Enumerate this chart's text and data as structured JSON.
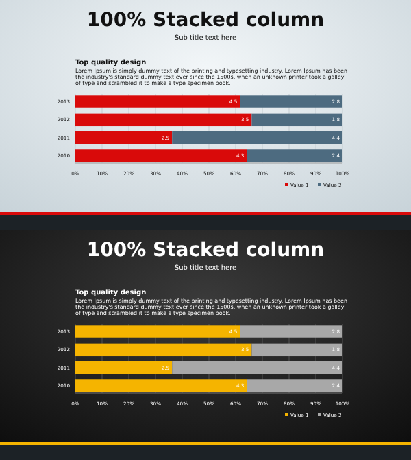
{
  "chart_data": [
    {
      "type": "bar",
      "orientation": "horizontal",
      "stacked": true,
      "title": "100% Stacked column",
      "subtitle": "Sub title text here",
      "annotations": [
        "Top quality design",
        "Lorem Ipsum is simply dummy text of the printing and typesetting industry. Lorem Ipsum has been the industry's standard dummy text ever since the 1500s, when an unknown printer took a galley of type and scrambled it to make a type specimen book.",
        {
          "text": "4.5",
          "x": 61.6,
          "y": "2013"
        },
        {
          "text": "3.5",
          "x": 66.0,
          "y": "2012"
        },
        {
          "text": "2.5",
          "x": 36.2,
          "y": "2011"
        },
        {
          "text": "4.3",
          "x": 64.2,
          "y": "2010"
        },
        {
          "text": "2.8",
          "x": 100,
          "y": "2013"
        },
        {
          "text": "1.8",
          "x": 100,
          "y": "2012"
        },
        {
          "text": "4.4",
          "x": 100,
          "y": "2011"
        },
        {
          "text": "2.4",
          "x": 100,
          "y": "2010"
        }
      ],
      "categories": [
        "2013",
        "2012",
        "2011",
        "2010"
      ],
      "series": [
        {
          "name": "Value 1",
          "color": "#d90a0a",
          "values": [
            61.6,
            66.0,
            36.2,
            64.2
          ]
        },
        {
          "name": "Value 2",
          "color": "#4d6b80",
          "values": [
            38.4,
            34.0,
            63.8,
            35.8
          ]
        }
      ],
      "xlim": [
        0,
        100
      ],
      "xticks": [
        {
          "value": 0,
          "label": "0%"
        },
        {
          "value": 10,
          "label": "10%"
        },
        {
          "value": 20,
          "label": "20%"
        },
        {
          "value": 30,
          "label": "30%"
        },
        {
          "value": 40,
          "label": "40%"
        },
        {
          "value": 50,
          "label": "50%"
        },
        {
          "value": 60,
          "label": "60%"
        },
        {
          "value": 70,
          "label": "70%"
        },
        {
          "value": 80,
          "label": "80%"
        },
        {
          "value": 90,
          "label": "90%"
        },
        {
          "value": 100,
          "label": "100%"
        }
      ],
      "grid": "x",
      "legend": "bottom right"
    },
    {
      "type": "bar",
      "orientation": "horizontal",
      "stacked": true,
      "title": "100% Stacked column",
      "subtitle": "Sub title text here",
      "annotations": [
        "Top quality design",
        "Lorem Ipsum is simply dummy text of the printing and typesetting industry. Lorem Ipsum has been the industry's standard dummy text ever since the 1500s, when an unknown printer took a galley of type and scrambled it to make a type specimen book.",
        {
          "text": "4.5",
          "x": 61.6,
          "y": "2013"
        },
        {
          "text": "3.5",
          "x": 66.0,
          "y": "2012"
        },
        {
          "text": "2.5",
          "x": 36.2,
          "y": "2011"
        },
        {
          "text": "4.3",
          "x": 64.2,
          "y": "2010"
        },
        {
          "text": "2.8",
          "x": 100,
          "y": "2013"
        },
        {
          "text": "1.8",
          "x": 100,
          "y": "2012"
        },
        {
          "text": "4.4",
          "x": 100,
          "y": "2011"
        },
        {
          "text": "2.4",
          "x": 100,
          "y": "2010"
        }
      ],
      "categories": [
        "2013",
        "2012",
        "2011",
        "2010"
      ],
      "series": [
        {
          "name": "Value 1",
          "color": "#f5b400",
          "values": [
            61.6,
            66.0,
            36.2,
            64.2
          ]
        },
        {
          "name": "Value 2",
          "color": "#a8a8a8",
          "values": [
            38.4,
            34.0,
            63.8,
            35.8
          ]
        }
      ],
      "xlim": [
        0,
        100
      ],
      "xticks": [
        {
          "value": 0,
          "label": "0%"
        },
        {
          "value": 10,
          "label": "10%"
        },
        {
          "value": 20,
          "label": "20%"
        },
        {
          "value": 30,
          "label": "30%"
        },
        {
          "value": 40,
          "label": "40%"
        },
        {
          "value": 50,
          "label": "50%"
        },
        {
          "value": 60,
          "label": "60%"
        },
        {
          "value": 70,
          "label": "70%"
        },
        {
          "value": 80,
          "label": "80%"
        },
        {
          "value": 90,
          "label": "90%"
        },
        {
          "value": 100,
          "label": "100%"
        }
      ],
      "grid": "x",
      "legend": "bottom right"
    }
  ]
}
